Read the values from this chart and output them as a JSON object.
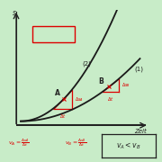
{
  "background_color": "#c8ecc8",
  "curve_color": "#1a1a1a",
  "red_color": "#dd0000",
  "dark_color": "#222222",
  "bg_green": "#c8ecc8",
  "c1": 0.55,
  "c2": 1.5,
  "tA": 0.38,
  "tB": 0.78,
  "dtA": 0.16,
  "dtB": 0.14,
  "t_max": 1.05,
  "s_max": 1.0,
  "label_1": "(1)",
  "label_2": "(2)",
  "label_A": "A",
  "label_B": "B",
  "xlabel": "Zeit",
  "ylabel": "s"
}
